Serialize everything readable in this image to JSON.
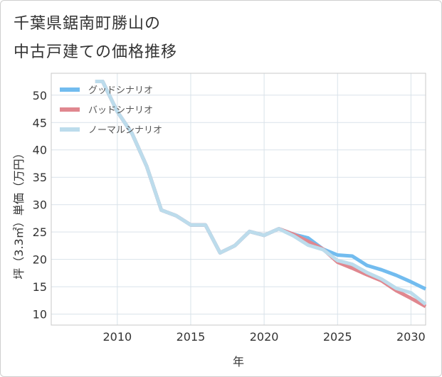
{
  "title_line1": "千葉県鋸南町勝山の",
  "title_line2": "中古戸建ての価格推移",
  "chart_data": {
    "type": "line",
    "xlabel": "年",
    "ylabel": "坪（3.3㎡）単価（万円）",
    "xlim": [
      2005.5,
      2031
    ],
    "ylim": [
      8,
      54
    ],
    "x_ticks": [
      2010,
      2015,
      2020,
      2025,
      2030
    ],
    "y_ticks": [
      10,
      15,
      20,
      25,
      30,
      35,
      40,
      45,
      50
    ],
    "grid": true,
    "legend_position": "top-left",
    "series": [
      {
        "name": "グッドシナリオ",
        "color": "#72bcef",
        "x": [
          2008.5,
          2009,
          2010,
          2011,
          2012,
          2013,
          2014,
          2015,
          2016,
          2017,
          2018,
          2019,
          2020,
          2021,
          2022,
          2023,
          2024,
          2025,
          2026,
          2027,
          2028,
          2029,
          2030,
          2031
        ],
        "values": [
          52.5,
          52.5,
          47,
          43,
          37,
          29,
          28,
          26.3,
          26.3,
          21.2,
          22.5,
          25.1,
          24.4,
          25.6,
          24.6,
          23.9,
          21.9,
          20.8,
          20.6,
          18.9,
          18.1,
          17.1,
          15.9,
          14.6
        ]
      },
      {
        "name": "バッドシナリオ",
        "color": "#e0878f",
        "x": [
          2008.5,
          2009,
          2010,
          2011,
          2012,
          2013,
          2014,
          2015,
          2016,
          2017,
          2018,
          2019,
          2020,
          2021,
          2022,
          2023,
          2024,
          2025,
          2026,
          2027,
          2028,
          2029,
          2030,
          2031
        ],
        "values": [
          52.5,
          52.5,
          47,
          43,
          37,
          29,
          28,
          26.3,
          26.3,
          21.2,
          22.5,
          25.1,
          24.4,
          25.6,
          24.6,
          23.3,
          21.9,
          19.5,
          18.4,
          17.2,
          16.1,
          14.3,
          12.9,
          11.4
        ]
      },
      {
        "name": "ノーマルシナリオ",
        "color": "#bcdcec",
        "x": [
          2008.5,
          2009,
          2010,
          2011,
          2012,
          2013,
          2014,
          2015,
          2016,
          2017,
          2018,
          2019,
          2020,
          2021,
          2022,
          2023,
          2024,
          2025,
          2026,
          2027,
          2028,
          2029,
          2030,
          2031
        ],
        "values": [
          52.5,
          52.5,
          47,
          43,
          37,
          29,
          28,
          26.3,
          26.3,
          21.2,
          22.5,
          25.1,
          24.4,
          25.6,
          24.3,
          22.6,
          21.8,
          19.8,
          19.1,
          17.6,
          16.4,
          14.7,
          13.9,
          11.8
        ]
      }
    ]
  }
}
